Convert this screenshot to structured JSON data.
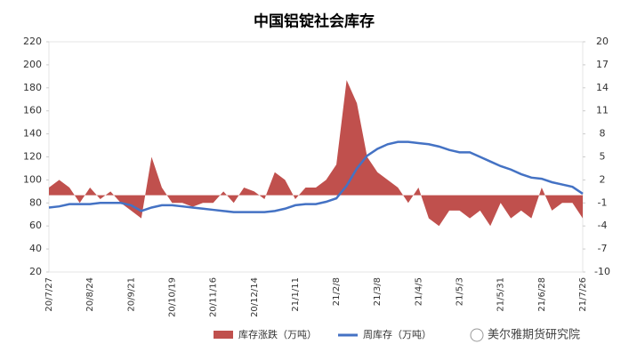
{
  "chart_data": {
    "type": "area-line",
    "title": "中国铝锭社会库存",
    "watermark": "美尔雅期货研究院",
    "categories": [
      "20/7/27",
      null,
      null,
      null,
      "20/8/24",
      null,
      null,
      null,
      "20/9/21",
      null,
      null,
      null,
      "20/10/19",
      null,
      null,
      null,
      "20/11/16",
      null,
      null,
      null,
      "20/12/14",
      null,
      null,
      null,
      "21/1/11",
      null,
      null,
      null,
      "21/2/8",
      null,
      null,
      null,
      "21/3/8",
      null,
      null,
      null,
      "21/4/5",
      null,
      null,
      null,
      "21/5/3",
      null,
      null,
      null,
      "21/5/31",
      null,
      null,
      null,
      "21/6/28",
      null,
      null,
      null,
      "21/7/26"
    ],
    "ylim": [
      20,
      220
    ],
    "yticks": [
      20,
      40,
      60,
      80,
      100,
      120,
      140,
      160,
      180,
      200,
      220
    ],
    "y2lim": [
      -10,
      20
    ],
    "y2ticks": [
      -10,
      -7,
      -4,
      -1,
      2,
      5,
      8,
      11,
      14,
      17,
      20
    ],
    "series": [
      {
        "name": "库存涨跌（万吨）",
        "color": "#c0504d",
        "axis": "y2",
        "kind": "area",
        "values": [
          1,
          2,
          1,
          -1,
          1,
          -0.5,
          0.5,
          -1,
          -2,
          -3,
          5,
          1,
          -1,
          -1,
          -1.5,
          -1,
          -1,
          0.5,
          -1,
          1,
          0.5,
          -0.5,
          3,
          2,
          -0.5,
          1,
          1,
          2,
          4,
          15,
          12,
          5,
          3,
          2,
          1,
          -1,
          1,
          -3,
          -4,
          -2,
          -2,
          -3,
          -2,
          -4,
          -1,
          -3,
          -2,
          -3,
          1,
          -2,
          -1,
          -1,
          -3
        ]
      },
      {
        "name": "周库存（万吨）",
        "color": "#4472c4",
        "kind": "line",
        "values": [
          76,
          77,
          79,
          79,
          79,
          80,
          80,
          80,
          78,
          73,
          76,
          78,
          78,
          77,
          76,
          75,
          74,
          73,
          72,
          72,
          72,
          72,
          73,
          75,
          78,
          79,
          79,
          81,
          84,
          95,
          110,
          121,
          127,
          131,
          133,
          133,
          132,
          131,
          129,
          126,
          124,
          124,
          120,
          116,
          112,
          109,
          105,
          102,
          101,
          98,
          96,
          94,
          88
        ]
      }
    ]
  }
}
